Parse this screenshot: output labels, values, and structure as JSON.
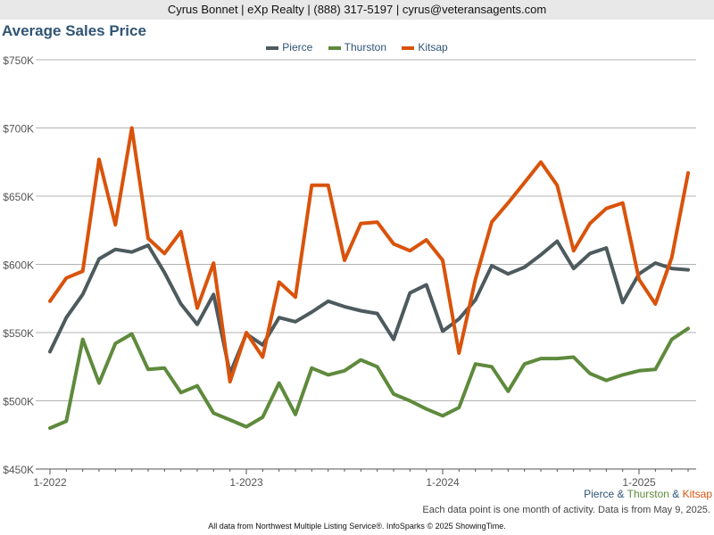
{
  "header": {
    "contact": "Cyrus Bonnet | eXp Realty | (888) 317-5197 | cyrus@veteransagents.com"
  },
  "attribution": {
    "pierce": "Pierce",
    "amp1": " & ",
    "thurston": "Thurston",
    "amp2": " & ",
    "kitsap": "Kitsap"
  },
  "footnote": "Each data point is one month of activity. Data is from May 9, 2025.",
  "source": "All data from Northwest Multiple Listing Service®. InfoSparks © 2025 ShowingTime.",
  "chart_data": {
    "type": "line",
    "title": "Average Sales Price",
    "ylim": [
      450000,
      750000
    ],
    "yticks": [
      450000,
      500000,
      550000,
      600000,
      650000,
      700000,
      750000
    ],
    "ytick_labels": [
      "$450K",
      "$500K",
      "$550K",
      "$600K",
      "$650K",
      "$700K",
      "$750K"
    ],
    "xticks": [
      {
        "index": 0,
        "label": "1-2022"
      },
      {
        "index": 12,
        "label": "1-2023"
      },
      {
        "index": 24,
        "label": "1-2024"
      },
      {
        "index": 36,
        "label": "1-2025"
      }
    ],
    "x": [
      "2022-01",
      "2022-02",
      "2022-03",
      "2022-04",
      "2022-05",
      "2022-06",
      "2022-07",
      "2022-08",
      "2022-09",
      "2022-10",
      "2022-11",
      "2022-12",
      "2023-01",
      "2023-02",
      "2023-03",
      "2023-04",
      "2023-05",
      "2023-06",
      "2023-07",
      "2023-08",
      "2023-09",
      "2023-10",
      "2023-11",
      "2023-12",
      "2024-01",
      "2024-02",
      "2024-03",
      "2024-04",
      "2024-05",
      "2024-06",
      "2024-07",
      "2024-08",
      "2024-09",
      "2024-10",
      "2024-11",
      "2024-12",
      "2025-01",
      "2025-02",
      "2025-03",
      "2025-04"
    ],
    "grid": true,
    "legend": "top-center",
    "series": [
      {
        "name": "Pierce",
        "color": "#4d5a5e",
        "values": [
          536000,
          561000,
          578000,
          604000,
          611000,
          609000,
          614000,
          594000,
          571000,
          556000,
          578000,
          520000,
          549000,
          541000,
          561000,
          558000,
          565000,
          573000,
          569000,
          566000,
          564000,
          545000,
          579000,
          585000,
          551000,
          560000,
          574000,
          599000,
          593000,
          598000,
          607000,
          617000,
          597000,
          608000,
          612000,
          572000,
          593000,
          601000,
          597000,
          596000
        ]
      },
      {
        "name": "Thurston",
        "color": "#5e8a3c",
        "values": [
          480000,
          485000,
          545000,
          513000,
          542000,
          549000,
          523000,
          524000,
          506000,
          511000,
          491000,
          486000,
          481000,
          488000,
          513000,
          490000,
          524000,
          519000,
          522000,
          530000,
          525000,
          505000,
          500000,
          494000,
          489000,
          495000,
          527000,
          525000,
          507000,
          527000,
          531000,
          531000,
          532000,
          520000,
          515000,
          519000,
          522000,
          523000,
          545000,
          553000
        ]
      },
      {
        "name": "Kitsap",
        "color": "#d9530b",
        "values": [
          573000,
          590000,
          595000,
          677000,
          629000,
          700000,
          619000,
          608000,
          624000,
          568000,
          601000,
          514000,
          550000,
          532000,
          587000,
          576000,
          658000,
          658000,
          603000,
          630000,
          631000,
          615000,
          610000,
          618000,
          603000,
          535000,
          589000,
          631000,
          645000,
          660000,
          675000,
          658000,
          610000,
          630000,
          641000,
          645000,
          589000,
          571000,
          605000,
          667000
        ]
      }
    ]
  }
}
